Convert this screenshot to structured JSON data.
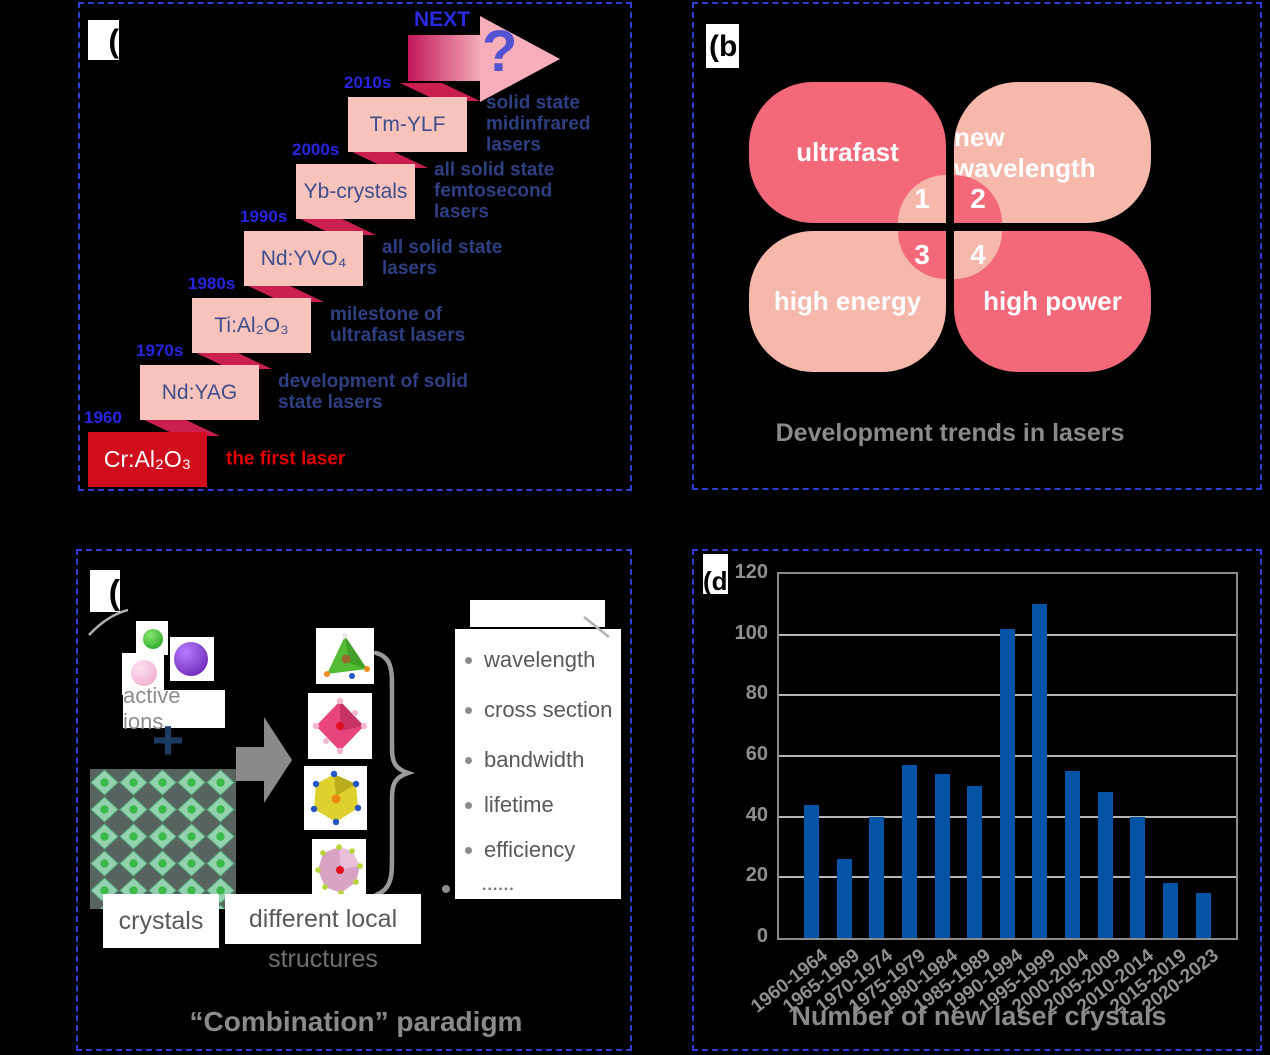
{
  "colors": {
    "year_blue": "#2626e0",
    "desc_blue": "#2e3f82",
    "first_laser_red": "#e00000",
    "step_pink": "#f8c3ba",
    "step_red": "#cf0d1d",
    "step_text": "#3d4e8c",
    "crimson": "#c92050",
    "arrow_light": "#f6aeba",
    "panel_border_blue": "#2e3fd0"
  },
  "panels": {
    "a": {
      "label": "(",
      "next_label": "NEXT",
      "question_mark": "?",
      "steps": [
        {
          "year": "1960",
          "crystal": "Cr:Al₂O₃",
          "desc": "the first laser",
          "accent": "#e00000"
        },
        {
          "year": "1970s",
          "crystal": "Nd:YAG",
          "desc": "development of solid\nstate lasers"
        },
        {
          "year": "1980s",
          "crystal": "Ti:Al₂O₃",
          "desc": "milestone of\nultrafast lasers"
        },
        {
          "year": "1990s",
          "crystal": "Nd:YVO₄",
          "desc": "all solid state\nlasers"
        },
        {
          "year": "2000s",
          "crystal": "Yb-crystals",
          "desc": "all solid state\nfemtosecond\nlasers"
        },
        {
          "year": "2010s",
          "crystal": "Tm-YLF",
          "desc": "solid state\nmidinfrared\nlasers"
        }
      ]
    },
    "b": {
      "label": "(b",
      "caption": "Development trends in lasers",
      "colors": {
        "dark": "#f4697a",
        "light": "#f6b8ab"
      },
      "petals": [
        {
          "num": "1",
          "label": "ultrafast",
          "tone": "dark"
        },
        {
          "num": "2",
          "label": "new wavelength",
          "tone": "light"
        },
        {
          "num": "3",
          "label": "high energy",
          "tone": "light"
        },
        {
          "num": "4",
          "label": "high power",
          "tone": "dark"
        }
      ]
    },
    "c": {
      "label": "(",
      "active_ions": "active ions",
      "plus": "+",
      "crystals": "crystals",
      "different_local": "different local",
      "structures": "structures",
      "properties": [
        "wavelength",
        "cross section",
        "bandwidth",
        "lifetime",
        "efficiency"
      ],
      "more_dots": "......",
      "caption": "“Combination” paradigm"
    },
    "d": {
      "label": "(d"
    }
  },
  "chart_data": {
    "type": "bar",
    "title": "Number of new laser crystals",
    "categories": [
      "1960-1964",
      "1965-1969",
      "1970-1974",
      "1975-1979",
      "1980-1984",
      "1985-1989",
      "1990-1994",
      "1995-1999",
      "2000-2004",
      "2005-2009",
      "2010-2014",
      "2015-2019",
      "2020-2023"
    ],
    "values": [
      44,
      26,
      40,
      57,
      54,
      50,
      102,
      110,
      55,
      48,
      40,
      18,
      15
    ],
    "xlabel": "",
    "ylabel": "",
    "ylim": [
      0,
      120
    ],
    "yticks": [
      0,
      20,
      40,
      60,
      80,
      100,
      120
    ],
    "bar_color": "#0453a4",
    "grid": true,
    "legend": "none"
  }
}
